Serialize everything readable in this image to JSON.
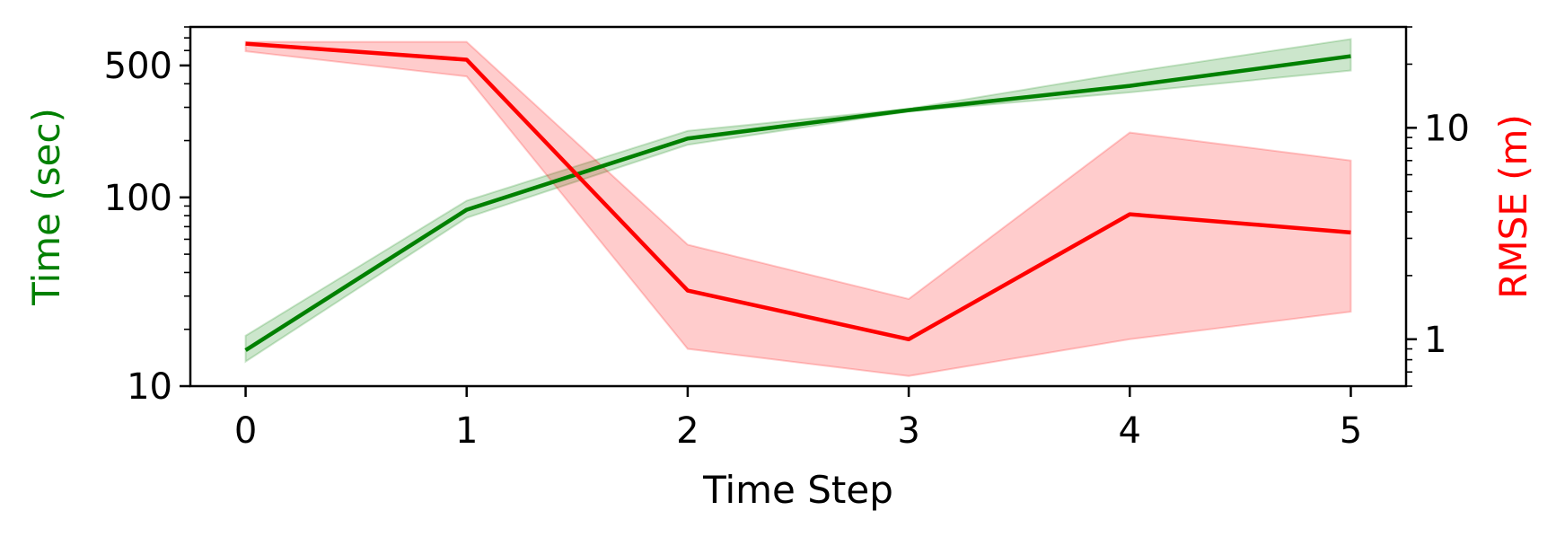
{
  "chart_data": {
    "type": "line",
    "x": [
      0,
      1,
      2,
      3,
      4,
      5
    ],
    "xlabel": "Time Step",
    "xlim": [
      -0.25,
      5.25
    ],
    "xticks": [
      "0",
      "1",
      "2",
      "3",
      "4",
      "5"
    ],
    "grid": false,
    "left_axis": {
      "label": "Time (sec)",
      "color": "#008000",
      "scale": "log",
      "ylim": [
        10,
        800
      ],
      "ticks": [
        10,
        100,
        500
      ],
      "tick_labels": [
        "10",
        "100",
        "500"
      ]
    },
    "right_axis": {
      "label": "RMSE (m)",
      "color": "#ff0000",
      "scale": "log",
      "ylim": [
        0.6,
        30
      ],
      "ticks": [
        1,
        10
      ],
      "tick_labels": [
        "1",
        "10"
      ]
    },
    "series": [
      {
        "axis": "left",
        "color": "#008000",
        "values": [
          15.5,
          86,
          205,
          290,
          390,
          560
        ],
        "lower": [
          13.5,
          78,
          190,
          285,
          360,
          470
        ],
        "upper": [
          18.5,
          96,
          225,
          295,
          460,
          690
        ]
      },
      {
        "axis": "right",
        "color": "#ff0000",
        "values": [
          25,
          21,
          1.7,
          1.0,
          3.9,
          3.2
        ],
        "lower": [
          23,
          17.5,
          0.9,
          0.67,
          1.0,
          1.35
        ],
        "upper": [
          25.5,
          25.5,
          2.8,
          1.55,
          9.5,
          7.0
        ]
      }
    ]
  }
}
